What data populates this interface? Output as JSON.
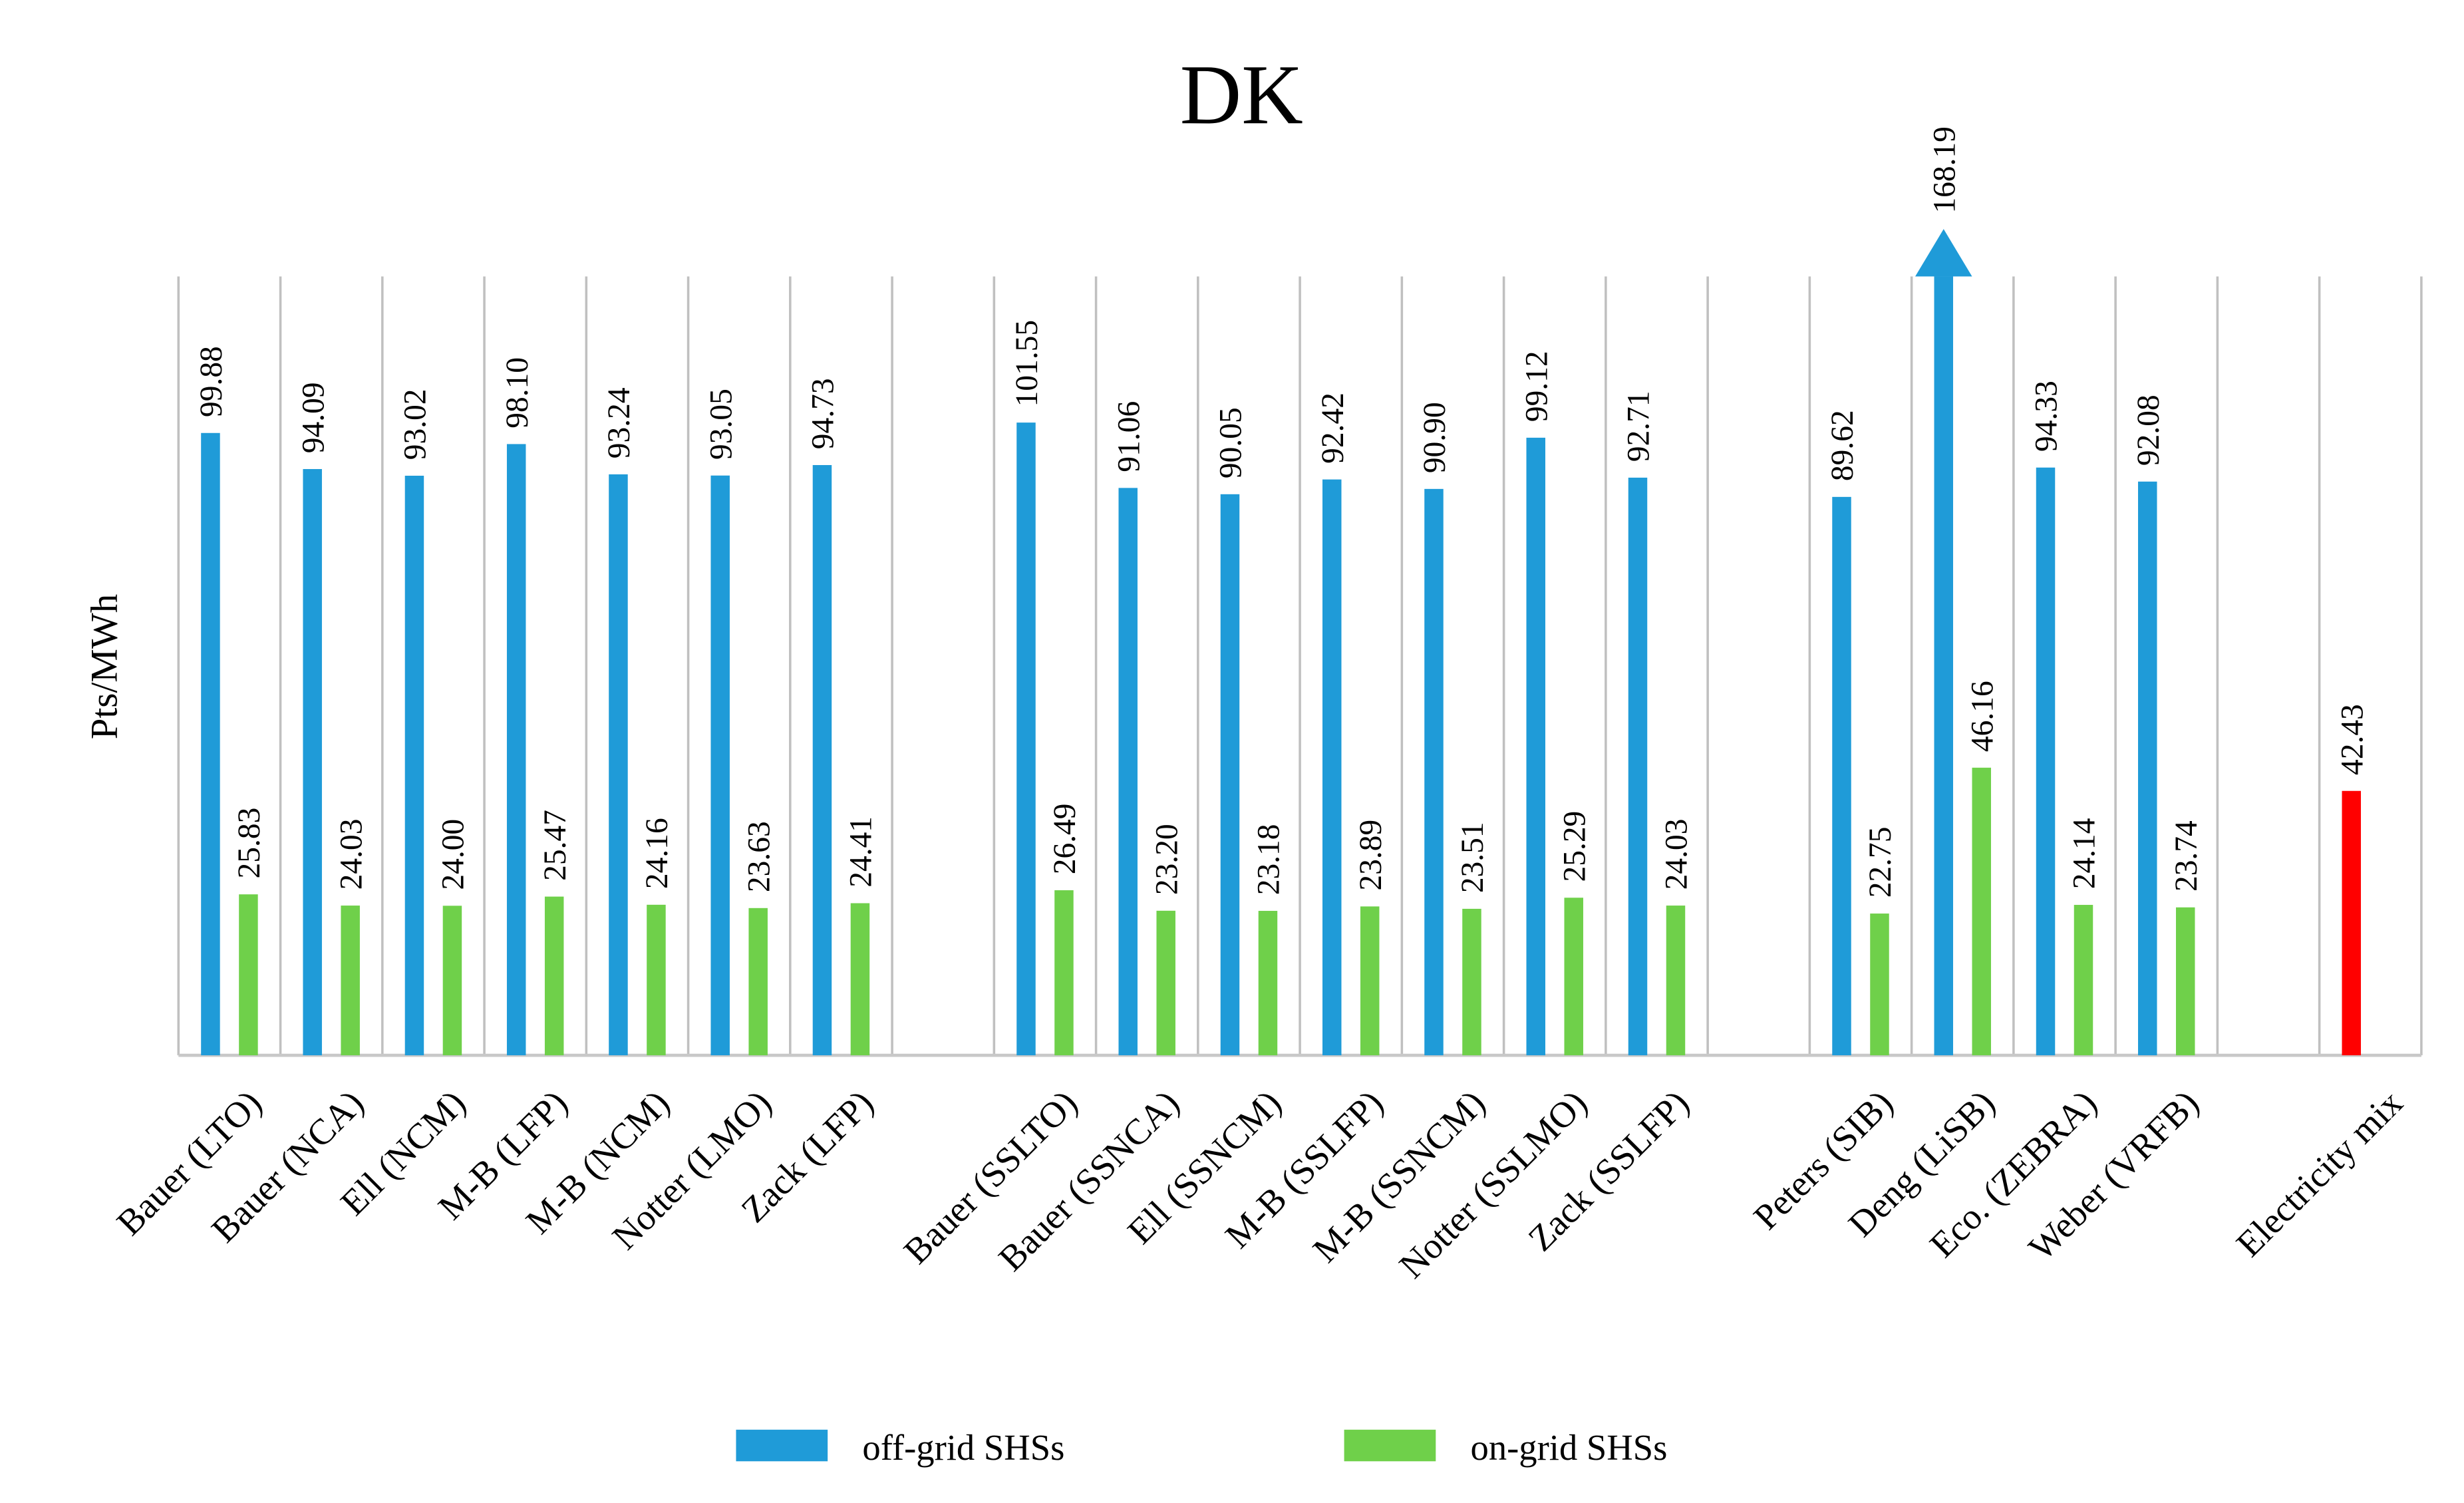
{
  "chart_data": {
    "type": "bar",
    "title": "DK",
    "y_label": "Pts/MWh",
    "categories": [
      "Bauer (LTO)",
      "Bauer (NCA)",
      "Ell (NCM)",
      "M-B (LFP)",
      "M-B (NCM)",
      "Notter (LMO)",
      "Zack (LFP)",
      null,
      "Bauer (SSLTO)",
      "Bauer (SSNCA)",
      "Ell (SSNCM)",
      "M-B (SSLFP)",
      "M-B (SSNCM)",
      "Notter (SSLMO)",
      "Zack (SSLFP)",
      null,
      "Peters (SIB)",
      "Deng (LiSB)",
      "Eco. (ZEBRA)",
      "Weber (VRFB)",
      null,
      "Electricity mix"
    ],
    "series": [
      {
        "name": "off-grid SHSs",
        "color": "#1f9bd8",
        "values": [
          99.88,
          94.09,
          93.02,
          98.1,
          93.24,
          93.05,
          94.73,
          null,
          101.55,
          91.06,
          90.05,
          92.42,
          90.9,
          99.12,
          92.71,
          null,
          89.62,
          168.19,
          94.33,
          92.08,
          null,
          null
        ],
        "value_labels": [
          "99.88",
          "94.09",
          "93.02",
          "98.10",
          "93.24",
          "93.05",
          "94.73",
          null,
          "101.55",
          "91.06",
          "90.05",
          "92.42",
          "90.90",
          "99.12",
          "92.71",
          null,
          "89.62",
          "168.19",
          "94.33",
          "92.08",
          null,
          null
        ]
      },
      {
        "name": "on-grid SHSs",
        "color": "#6fd04a",
        "values": [
          25.83,
          24.03,
          24.0,
          25.47,
          24.16,
          23.63,
          24.41,
          null,
          26.49,
          23.2,
          23.18,
          23.89,
          23.51,
          25.29,
          24.03,
          null,
          22.75,
          46.16,
          24.14,
          23.74,
          null,
          null
        ],
        "value_labels": [
          "25.83",
          "24.03",
          "24.00",
          "25.47",
          "24.16",
          "23.63",
          "24.41",
          null,
          "26.49",
          "23.20",
          "23.18",
          "23.89",
          "23.51",
          "25.29",
          "24.03",
          null,
          "22.75",
          "46.16",
          "24.14",
          "23.74",
          null,
          null
        ]
      },
      {
        "color": "#ff0000",
        "values": [
          null,
          null,
          null,
          null,
          null,
          null,
          null,
          null,
          null,
          null,
          null,
          null,
          null,
          null,
          null,
          null,
          null,
          null,
          null,
          null,
          null,
          42.43
        ],
        "value_labels": [
          null,
          null,
          null,
          null,
          null,
          null,
          null,
          null,
          null,
          null,
          null,
          null,
          null,
          null,
          null,
          null,
          null,
          null,
          null,
          null,
          null,
          "42.43"
        ]
      }
    ],
    "ylim": [
      0,
      125
    ],
    "legend": "bottom"
  }
}
